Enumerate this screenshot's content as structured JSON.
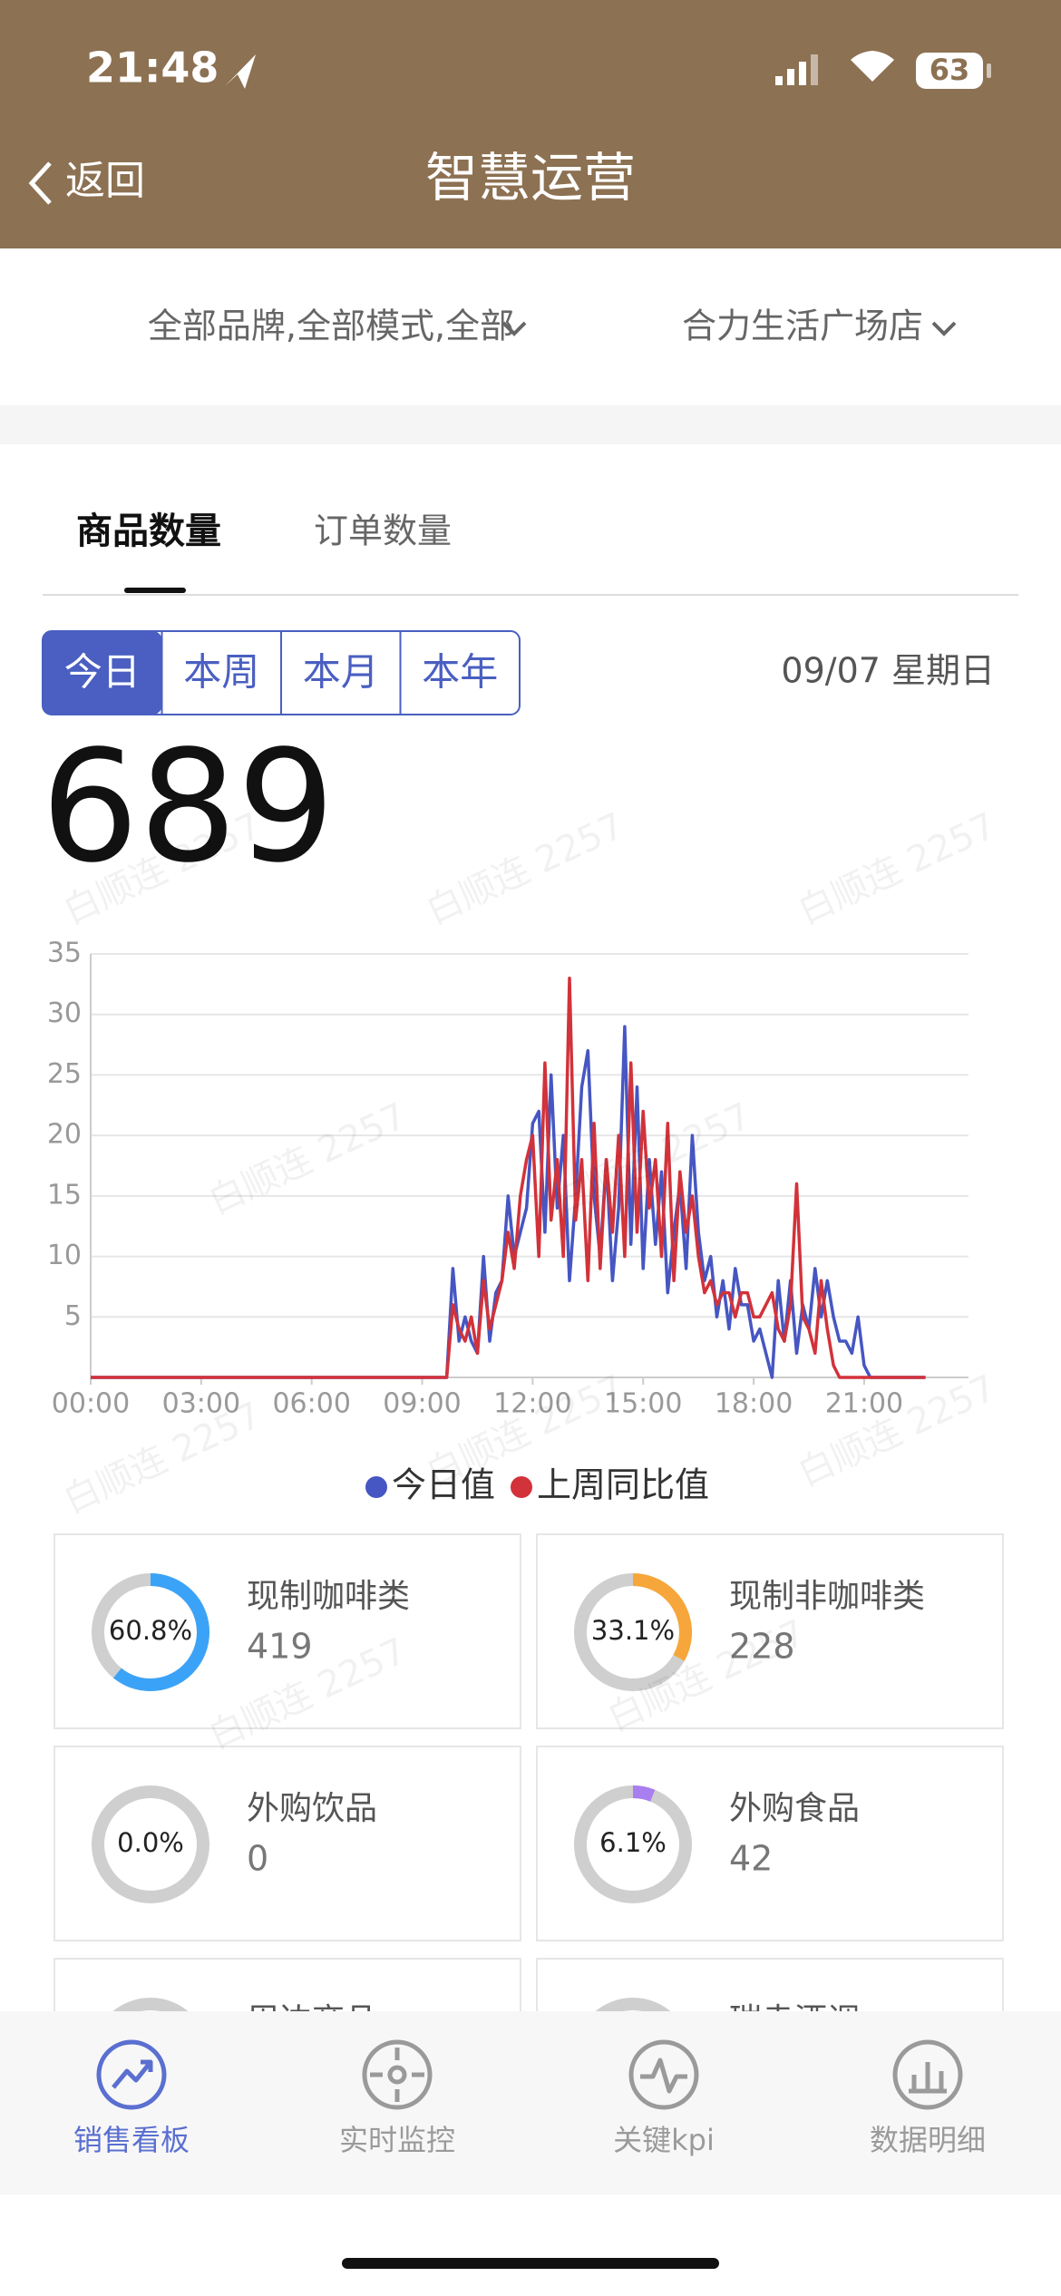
{
  "status_bar": {
    "time": "21:48",
    "battery": "63"
  },
  "nav": {
    "back": "返回",
    "title": "智慧运营"
  },
  "filters": [
    "全部品牌,全部模式,全部",
    "合力生活广场店"
  ],
  "tabs": [
    "商品数量",
    "订单数量"
  ],
  "periods": [
    "今日",
    "本周",
    "本月",
    "本年"
  ],
  "date": "09/07 星期日",
  "total": 689,
  "watermark": "白顺连 2257",
  "chart_data": {
    "type": "line",
    "x": [
      "00:00",
      "09:40",
      "09:50",
      "10:00",
      "10:10",
      "10:20",
      "10:30",
      "10:40",
      "10:50",
      "11:00",
      "11:10",
      "11:20",
      "11:30",
      "11:40",
      "11:50",
      "12:00",
      "12:10",
      "12:20",
      "12:30",
      "12:40",
      "12:50",
      "13:00",
      "13:10",
      "13:20",
      "13:30",
      "13:40",
      "13:50",
      "14:00",
      "14:10",
      "14:20",
      "14:30",
      "14:40",
      "14:50",
      "15:00",
      "15:10",
      "15:20",
      "15:30",
      "15:40",
      "15:50",
      "16:00",
      "16:10",
      "16:20",
      "16:30",
      "16:40",
      "16:50",
      "17:00",
      "17:10",
      "17:20",
      "17:30",
      "17:40",
      "17:50",
      "18:00",
      "18:10",
      "18:20",
      "18:30",
      "18:40",
      "18:50",
      "19:00",
      "19:10",
      "19:20",
      "19:30",
      "19:40",
      "19:50",
      "20:00",
      "20:10",
      "20:20",
      "20:30",
      "20:40",
      "20:50",
      "21:00",
      "21:10",
      "21:20",
      "21:30",
      "21:40",
      "21:50",
      "22:00",
      "22:10",
      "22:20",
      "22:30",
      "22:40"
    ],
    "xlim": [
      "00:00",
      "23:50"
    ],
    "xticks": [
      "00:00",
      "03:00",
      "06:00",
      "09:00",
      "12:00",
      "15:00",
      "18:00",
      "21:00"
    ],
    "ylim": [
      0,
      35
    ],
    "yticks": [
      5,
      10,
      15,
      20,
      25,
      30,
      35
    ],
    "grid": true,
    "legend": "bottom",
    "series": [
      {
        "name": "今日值",
        "color": "#4656c2",
        "values": [
          0,
          0,
          9,
          3,
          5,
          3,
          2,
          10,
          3,
          7,
          8,
          15,
          10,
          12,
          14,
          21,
          22,
          12,
          25,
          14,
          20,
          8,
          15,
          24,
          27,
          15,
          10,
          18,
          8,
          14,
          29,
          11,
          24,
          9,
          18,
          11,
          17,
          7,
          12,
          16,
          9,
          20,
          12,
          8,
          10,
          5,
          8,
          4,
          9,
          6,
          6,
          3,
          4,
          2,
          0,
          8,
          3,
          8,
          2,
          6,
          4,
          9,
          5,
          8,
          5,
          3,
          3,
          2,
          5,
          1,
          0,
          0,
          0,
          0,
          0,
          0,
          0,
          0,
          0,
          0
        ]
      },
      {
        "name": "上周同比值",
        "color": "#d2323a",
        "values": [
          0,
          0,
          6,
          4,
          3,
          5,
          2,
          8,
          4,
          6,
          8,
          12,
          9,
          15,
          18,
          20,
          10,
          26,
          13,
          18,
          10,
          33,
          13,
          18,
          8,
          21,
          9,
          18,
          12,
          20,
          10,
          26,
          12,
          22,
          14,
          18,
          10,
          21,
          8,
          17,
          12,
          15,
          10,
          7,
          8,
          6,
          7,
          7,
          5,
          7,
          7,
          5,
          5,
          6,
          7,
          4,
          3,
          6,
          16,
          5,
          4,
          2,
          8,
          4,
          1,
          0,
          0,
          0,
          0,
          0,
          0,
          0,
          0,
          0,
          0,
          0,
          0,
          0,
          0,
          0
        ]
      }
    ]
  },
  "cards": [
    {
      "name": "现制咖啡类",
      "percent": 60.8,
      "percent_label": "60.8%",
      "count": 419,
      "color": "#3ba3f7"
    },
    {
      "name": "现制非咖啡类",
      "percent": 33.1,
      "percent_label": "33.1%",
      "count": 228,
      "color": "#f7a63b"
    },
    {
      "name": "外购饮品",
      "percent": 0.0,
      "percent_label": "0.0%",
      "count": 0,
      "color": "#3ba3f7"
    },
    {
      "name": "外购食品",
      "percent": 6.1,
      "percent_label": "6.1%",
      "count": 42,
      "color": "#a97ef0"
    },
    {
      "name": "周边商品"
    },
    {
      "name": "瑞幸酒调"
    }
  ],
  "bottom_tabs": [
    "销售看板",
    "实时监控",
    "关键kpi",
    "数据明细"
  ]
}
